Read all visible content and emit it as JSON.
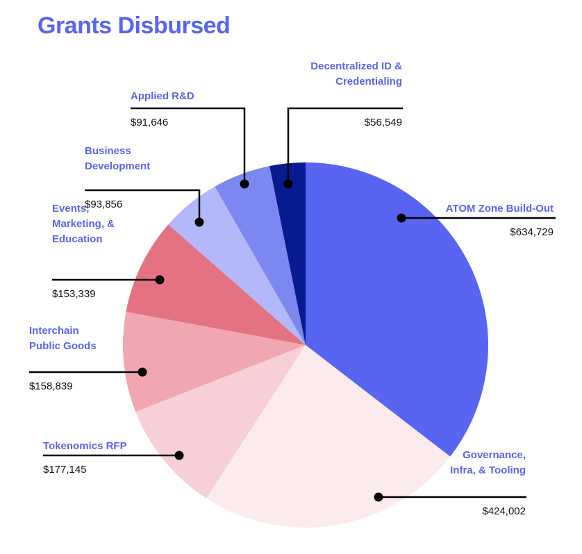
{
  "chart_data": {
    "type": "pie",
    "title": "Grants Disbursed",
    "start_angle_deg": 0,
    "direction": "clockwise",
    "slices": [
      {
        "label": "ATOM Zone Build-Out",
        "value": 634729,
        "value_label": "$634,729",
        "color": "#5865f2"
      },
      {
        "label": "Governance, Infra, & Tooling",
        "value": 424002,
        "value_label": "$424,002",
        "color": "#fcebed"
      },
      {
        "label": "Tokenomics RFP",
        "value": 177145,
        "value_label": "$177,145",
        "color": "#f6d0d6"
      },
      {
        "label": "Interchain Public Goods",
        "value": 158839,
        "value_label": "$158,839",
        "color": "#f1a7b1"
      },
      {
        "label": "Events, Marketing, & Education",
        "value": 153339,
        "value_label": "$153,339",
        "color": "#e57282"
      },
      {
        "label": "Business Development",
        "value": 93856,
        "value_label": "$93,856",
        "color": "#b3b8fa"
      },
      {
        "label": "Applied R&D",
        "value": 91646,
        "value_label": "$91,646",
        "color": "#7c87f1"
      },
      {
        "label": "Decentralized ID & Credentialing",
        "value": 56549,
        "value_label": "$56,549",
        "color": "#071a8f"
      }
    ],
    "callouts": [
      {
        "lines": [
          "ATOM Zone Build-Out"
        ],
        "value_label": "$634,729"
      },
      {
        "lines": [
          "Governance,",
          "Infra, & Tooling"
        ],
        "value_label": "$424,002"
      },
      {
        "lines": [
          "Tokenomics RFP"
        ],
        "value_label": "$177,145"
      },
      {
        "lines": [
          "Interchain",
          "Public Goods"
        ],
        "value_label": "$158,839"
      },
      {
        "lines": [
          "Events,",
          "Marketing, &",
          "Education"
        ],
        "value_label": "$153,339"
      },
      {
        "lines": [
          "Business",
          "Development"
        ],
        "value_label": "$93,856"
      },
      {
        "lines": [
          "Applied R&D"
        ],
        "value_label": "$91,646"
      },
      {
        "lines": [
          "Decentralized ID &",
          "Credentialing"
        ],
        "value_label": "$56,549"
      }
    ]
  }
}
